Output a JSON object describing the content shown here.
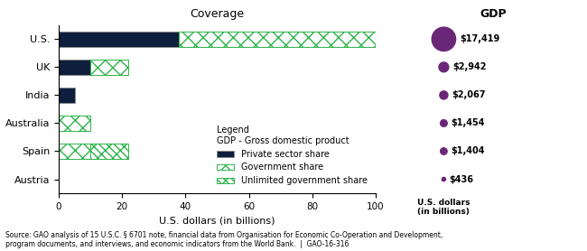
{
  "chart_data": [
    {
      "type": "bar",
      "orientation": "horizontal",
      "stacked": true,
      "title": "Coverage",
      "xlabel": "U.S. dollars (in billions)",
      "categories": [
        "U.S.",
        "UK",
        "India",
        "Australia",
        "Spain",
        "Austria"
      ],
      "series": [
        {
          "name": "Private sector share",
          "color": "#0d1f3c",
          "values": [
            38,
            10,
            5,
            0,
            0,
            0
          ]
        },
        {
          "name": "Government share",
          "color": "#2db34a",
          "values": [
            62,
            12,
            0,
            10,
            10,
            0
          ]
        },
        {
          "name": "Unlimited government share",
          "color": "#2db34a",
          "values": [
            0,
            0,
            0,
            0,
            12,
            0
          ]
        }
      ],
      "xlim": [
        0,
        100
      ],
      "xticks": [
        0,
        20,
        40,
        60,
        80,
        100
      ],
      "grid": false,
      "legend": "lower right",
      "annotations": [
        "Legend",
        "GDP - Gross domestic product"
      ]
    },
    {
      "type": "bubble",
      "title": "GDP",
      "xlabel": "U.S. dollars\n(in billions)",
      "categories": [
        "U.S.",
        "UK",
        "India",
        "Australia",
        "Spain",
        "Austria"
      ],
      "values": [
        17419,
        2942,
        2067,
        1454,
        1404,
        436
      ],
      "value_labels": [
        "$17,419",
        "$2,942",
        "$2,067",
        "$1,454",
        "$1,404",
        "$436"
      ],
      "color": "#6b2777",
      "data_labels": true,
      "tick_labels": false
    }
  ],
  "source": "Source: GAO analysis of 15 U.S.C. § 6701 note, financial data from Organisation for Economic Co-Operation and Development,\nprogram documents, and interviews, and economic indicators from the World Bank.  |  GAO-16-316"
}
